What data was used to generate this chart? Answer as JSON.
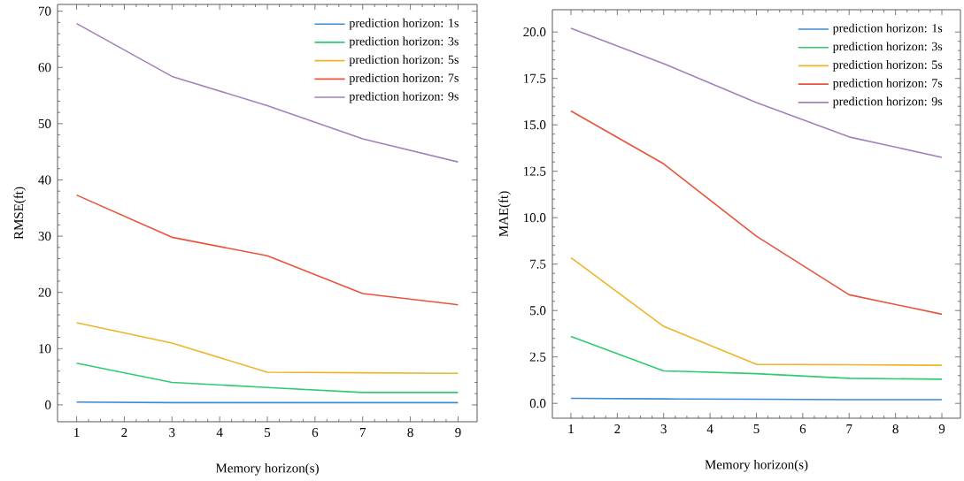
{
  "chart_data": [
    {
      "type": "line",
      "xlabel": "Memory horizon(s)",
      "ylabel": "RMSE(ft)",
      "x": [
        1,
        3,
        5,
        7,
        9
      ],
      "xlim": [
        0.6,
        9.4
      ],
      "ylim": [
        -3,
        71.2
      ],
      "xticks": [
        1,
        2,
        3,
        4,
        5,
        6,
        7,
        8,
        9
      ],
      "yticks": [
        0,
        10,
        20,
        30,
        40,
        50,
        60,
        70
      ],
      "legend": "top right",
      "series": [
        {
          "name": "prediction horizon: 1s",
          "color": "#3d8bd1",
          "values": [
            0.5,
            0.4,
            0.4,
            0.4,
            0.4
          ]
        },
        {
          "name": "prediction horizon: 3s",
          "color": "#2ecc71",
          "values": [
            7.4,
            4.0,
            3.1,
            2.2,
            2.2
          ]
        },
        {
          "name": "prediction horizon: 5s",
          "color": "#f0b429",
          "values": [
            14.6,
            11.0,
            5.8,
            5.7,
            5.6
          ]
        },
        {
          "name": "prediction horizon: 7s",
          "color": "#e8543a",
          "values": [
            37.3,
            29.8,
            26.5,
            19.8,
            17.8
          ]
        },
        {
          "name": "prediction horizon: 9s",
          "color": "#a381b8",
          "values": [
            67.8,
            58.4,
            53.2,
            47.3,
            43.2
          ]
        }
      ]
    },
    {
      "type": "line",
      "xlabel": "Memory horizon(s)",
      "ylabel": "MAE(ft)",
      "x": [
        1,
        3,
        5,
        7,
        9
      ],
      "xlim": [
        0.6,
        9.4
      ],
      "ylim": [
        -0.8,
        21.2
      ],
      "xticks": [
        1,
        2,
        3,
        4,
        5,
        6,
        7,
        8,
        9
      ],
      "yticks": [
        {
          "value": 0,
          "label": "0.0"
        },
        {
          "value": 2.5,
          "label": "2.5"
        },
        {
          "value": 5,
          "label": "5.0"
        },
        {
          "value": 7.5,
          "label": "7.5"
        },
        {
          "value": 10,
          "label": "10.0"
        },
        {
          "value": 12.5,
          "label": "12.5"
        },
        {
          "value": 15,
          "label": "15.0"
        },
        {
          "value": 17.5,
          "label": "17.5"
        },
        {
          "value": 20,
          "label": "20.0"
        }
      ],
      "legend": "top right",
      "series": [
        {
          "name": "prediction horizon: 1s",
          "color": "#3d8bd1",
          "values": [
            0.27,
            0.24,
            0.22,
            0.2,
            0.2
          ]
        },
        {
          "name": "prediction horizon: 3s",
          "color": "#2ecc71",
          "values": [
            3.6,
            1.75,
            1.6,
            1.35,
            1.3
          ]
        },
        {
          "name": "prediction horizon: 5s",
          "color": "#f0b429",
          "values": [
            7.85,
            4.15,
            2.1,
            2.08,
            2.05
          ]
        },
        {
          "name": "prediction horizon: 7s",
          "color": "#e8543a",
          "values": [
            15.75,
            12.9,
            9.0,
            5.85,
            4.8
          ]
        },
        {
          "name": "prediction horizon: 9s",
          "color": "#a381b8",
          "values": [
            20.2,
            18.3,
            16.2,
            14.35,
            13.25
          ]
        }
      ]
    }
  ]
}
